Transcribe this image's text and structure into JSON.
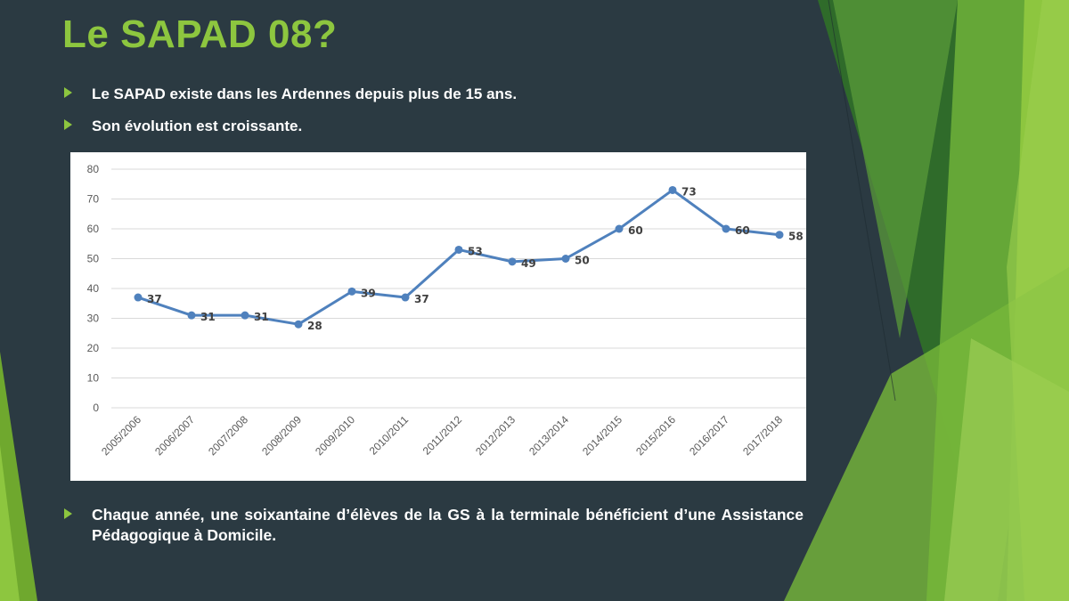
{
  "slide": {
    "title": "Le SAPAD 08?",
    "bullets": [
      "Le SAPAD existe dans les Ardennes depuis plus de 15 ans.",
      "Son évolution est croissante.",
      "Chaque année, une soixantaine d’élèves de la GS à la terminale bénéficient d’une Assistance Pédagogique à Domicile."
    ],
    "colors": {
      "background": "#2b3a42",
      "accent": "#8dc63f",
      "text": "#ffffff"
    }
  },
  "chart_data": {
    "type": "line",
    "title": "",
    "xlabel": "",
    "ylabel": "",
    "categories": [
      "2005/2006",
      "2006/2007",
      "2007/2008",
      "2008/2009",
      "2009/2010",
      "2010/2011",
      "2011/2012",
      "2012/2013",
      "2013/2014",
      "2014/2015",
      "2015/2016",
      "2016/2017",
      "2017/2018"
    ],
    "series": [
      {
        "values": [
          37,
          31,
          31,
          28,
          39,
          37,
          53,
          49,
          50,
          60,
          73,
          60,
          58
        ],
        "color": "#4f81bd"
      }
    ],
    "ylim": [
      0,
      80
    ],
    "yticks": [
      0,
      10,
      20,
      30,
      40,
      50,
      60,
      70,
      80
    ],
    "grid": true,
    "data_labels": true,
    "legend": "none"
  }
}
